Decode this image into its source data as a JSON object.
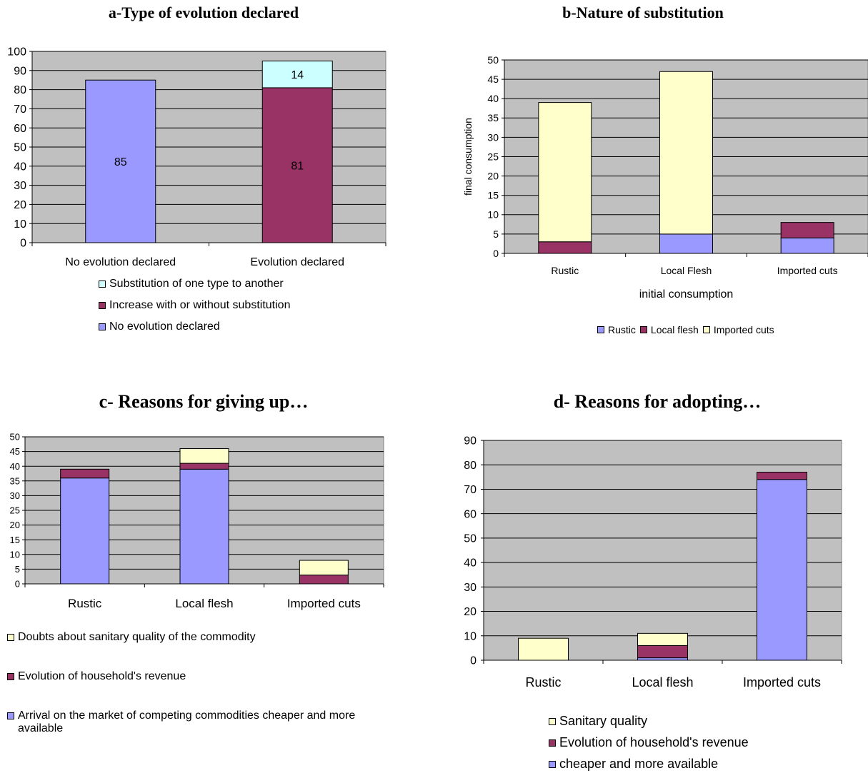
{
  "colors": {
    "blue": "#9999ff",
    "maroon": "#993366",
    "yellow": "#ffffcc",
    "cyan": "#ccffff",
    "plot_bg": "#c0c0c0"
  },
  "chart_data": [
    {
      "id": "a",
      "type": "bar",
      "stacked": true,
      "title": "a-Type of evolution declared",
      "xlabel": "",
      "ylabel": "",
      "ylim": [
        0,
        100
      ],
      "yticks": [
        0,
        10,
        20,
        30,
        40,
        50,
        60,
        70,
        80,
        90,
        100
      ],
      "categories": [
        "No evolution declared",
        "Evolution declared"
      ],
      "series": [
        {
          "name": "No evolution declared",
          "color": "#9999ff",
          "values": [
            85,
            0
          ]
        },
        {
          "name": "Increase with or without substitution",
          "color": "#993366",
          "values": [
            0,
            81
          ]
        },
        {
          "name": "Substitution of one type to another",
          "color": "#ccffff",
          "values": [
            0,
            14
          ]
        }
      ],
      "data_labels": [
        {
          "category": 0,
          "series": 0,
          "text": "85"
        },
        {
          "category": 1,
          "series": 1,
          "text": "81"
        },
        {
          "category": 1,
          "series": 2,
          "text": "14"
        }
      ],
      "legend_order": [
        2,
        1,
        0
      ],
      "legend": "bottom",
      "grid": true
    },
    {
      "id": "b",
      "type": "bar",
      "stacked": true,
      "title": "b-Nature of substitution",
      "xlabel": "initial consumption",
      "ylabel": "final consumption",
      "ylim": [
        0,
        50
      ],
      "yticks": [
        0,
        5,
        10,
        15,
        20,
        25,
        30,
        35,
        40,
        45,
        50
      ],
      "categories": [
        "Rustic",
        "Local Flesh",
        "Imported cuts"
      ],
      "series": [
        {
          "name": "Rustic",
          "color": "#9999ff",
          "values": [
            0,
            5,
            4
          ]
        },
        {
          "name": "Local flesh",
          "color": "#993366",
          "values": [
            3,
            0,
            4
          ]
        },
        {
          "name": "Imported cuts",
          "color": "#ffffcc",
          "values": [
            36,
            42,
            0
          ]
        }
      ],
      "legend_order": [
        0,
        1,
        2
      ],
      "legend": "bottom",
      "grid": true
    },
    {
      "id": "c",
      "type": "bar",
      "stacked": true,
      "title": "c- Reasons for giving up…",
      "xlabel": "",
      "ylabel": "",
      "ylim": [
        0,
        50
      ],
      "yticks": [
        0,
        5,
        10,
        15,
        20,
        25,
        30,
        35,
        40,
        45,
        50
      ],
      "categories": [
        "Rustic",
        "Local flesh",
        "Imported cuts"
      ],
      "series": [
        {
          "name": "Arrival on the market of competing commodities cheaper and more available",
          "color": "#9999ff",
          "values": [
            36,
            39,
            0
          ]
        },
        {
          "name": "Evolution of household's revenue",
          "color": "#993366",
          "values": [
            3,
            2,
            3
          ]
        },
        {
          "name": "Doubts about sanitary quality of the commodity",
          "color": "#ffffcc",
          "values": [
            0,
            5,
            5
          ]
        }
      ],
      "legend_order": [
        2,
        1,
        0
      ],
      "legend": "bottom",
      "grid": true
    },
    {
      "id": "d",
      "type": "bar",
      "stacked": true,
      "title": "d- Reasons for adopting…",
      "xlabel": "",
      "ylabel": "",
      "ylim": [
        0,
        90
      ],
      "yticks": [
        0,
        10,
        20,
        30,
        40,
        50,
        60,
        70,
        80,
        90
      ],
      "categories": [
        "Rustic",
        "Local flesh",
        "Imported cuts"
      ],
      "series": [
        {
          "name": "cheaper and more available",
          "color": "#9999ff",
          "values": [
            0,
            1,
            74
          ]
        },
        {
          "name": "Evolution of household's revenue",
          "color": "#993366",
          "values": [
            0,
            5,
            3
          ]
        },
        {
          "name": "Sanitary quality",
          "color": "#ffffcc",
          "values": [
            9,
            5,
            0
          ]
        }
      ],
      "legend_order": [
        2,
        1,
        0
      ],
      "legend": "bottom",
      "grid": true
    }
  ]
}
